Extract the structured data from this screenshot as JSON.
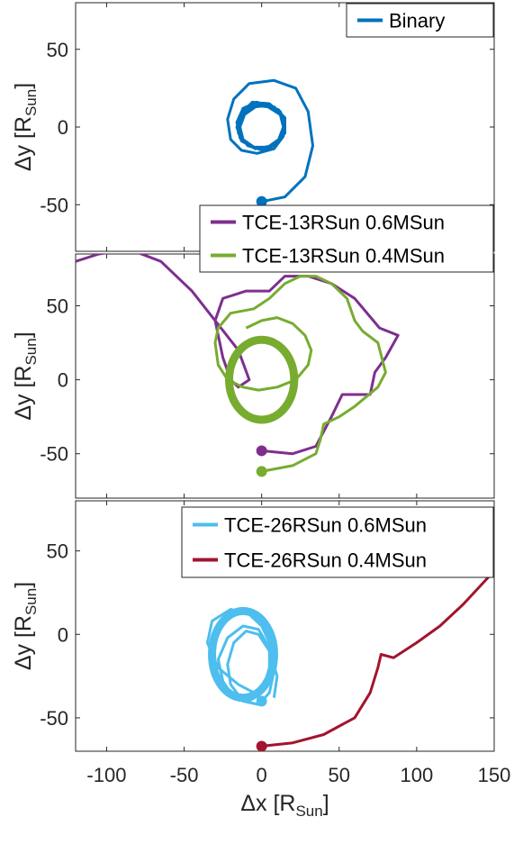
{
  "chart_data": [
    {
      "type": "line",
      "xlim": [
        -120,
        150
      ],
      "ylim": [
        -80,
        80
      ],
      "yticks": [
        50,
        0,
        -50
      ],
      "ylabel": {
        "prefix": "Δy [R",
        "sub": "Sun",
        "suffix": "]"
      },
      "grid": false,
      "legend_position": "top-right",
      "series": [
        {
          "name": "Binary",
          "color": "#0072BD",
          "thick": false,
          "points": [
            [
              0,
              -48
            ],
            [
              15,
              -45
            ],
            [
              28,
              -32
            ],
            [
              33,
              -12
            ],
            [
              30,
              10
            ],
            [
              22,
              25
            ],
            [
              8,
              30
            ],
            [
              -8,
              28
            ],
            [
              -18,
              18
            ],
            [
              -22,
              5
            ],
            [
              -20,
              -8
            ],
            [
              -13,
              -15
            ],
            [
              -3,
              -17
            ],
            [
              8,
              -14
            ],
            [
              14,
              -6
            ],
            [
              15,
              3
            ],
            [
              12,
              10
            ],
            [
              5,
              14
            ],
            [
              -4,
              13
            ],
            [
              -11,
              8
            ],
            [
              -14,
              0
            ],
            [
              -12,
              -8
            ],
            [
              -5,
              -13
            ],
            [
              4,
              -13
            ],
            [
              11,
              -8
            ],
            [
              14,
              0
            ],
            [
              12,
              8
            ],
            [
              4,
              13
            ],
            [
              -5,
              14
            ],
            [
              -12,
              9
            ],
            [
              -16,
              0
            ],
            [
              -13,
              -9
            ],
            [
              -4,
              -14
            ],
            [
              7,
              -12
            ],
            [
              15,
              -4
            ],
            [
              15,
              6
            ],
            [
              8,
              13
            ],
            [
              -3,
              16
            ],
            [
              -12,
              12
            ],
            [
              -16,
              3
            ],
            [
              -14,
              -7
            ],
            [
              -6,
              -13
            ],
            [
              4,
              -14
            ],
            [
              12,
              -8
            ],
            [
              15,
              2
            ],
            [
              11,
              11
            ],
            [
              2,
              15
            ],
            [
              -9,
              13
            ],
            [
              -15,
              5
            ],
            [
              -15,
              -4
            ],
            [
              -9,
              -12
            ],
            [
              1,
              -15
            ],
            [
              10,
              -11
            ],
            [
              15,
              -2
            ],
            [
              13,
              8
            ],
            [
              5,
              15
            ],
            [
              -6,
              16
            ],
            [
              -13,
              9
            ],
            [
              -16,
              -1
            ]
          ],
          "marker": [
            0,
            -48
          ],
          "center": [
            0,
            0
          ]
        }
      ]
    },
    {
      "type": "line",
      "xlim": [
        -120,
        150
      ],
      "ylim": [
        -80,
        85
      ],
      "yticks": [
        50,
        0,
        -50
      ],
      "ylabel": {
        "prefix": "Δy [R",
        "sub": "Sun",
        "suffix": "]"
      },
      "grid": false,
      "legend_position": "top-right",
      "series": [
        {
          "name": "TCE-13RSun 0.6MSun",
          "color": "#7E2F8E",
          "thick": false,
          "points": [
            [
              0,
              -48
            ],
            [
              20,
              -50
            ],
            [
              35,
              -45
            ],
            [
              45,
              -25
            ],
            [
              52,
              -10
            ],
            [
              70,
              -10
            ],
            [
              73,
              5
            ],
            [
              80,
              15
            ],
            [
              88,
              30
            ],
            [
              76,
              35
            ],
            [
              72,
              40
            ],
            [
              60,
              55
            ],
            [
              45,
              65
            ],
            [
              30,
              70
            ],
            [
              15,
              70
            ],
            [
              5,
              60
            ],
            [
              -10,
              60
            ],
            [
              -25,
              55
            ],
            [
              -30,
              40
            ],
            [
              -25,
              15
            ],
            [
              -20,
              0
            ],
            [
              -15,
              -5
            ],
            [
              -8,
              0
            ],
            [
              -15,
              20
            ],
            [
              -30,
              40
            ],
            [
              -45,
              60
            ],
            [
              -65,
              80
            ],
            [
              -85,
              88
            ],
            [
              -105,
              85
            ],
            [
              -120,
              80
            ]
          ],
          "marker": [
            0,
            -48
          ]
        },
        {
          "name": "TCE-13RSun 0.4MSun",
          "color": "#77AC30",
          "thick": false,
          "points": [
            [
              0,
              -62
            ],
            [
              20,
              -58
            ],
            [
              35,
              -50
            ],
            [
              38,
              -40
            ],
            [
              40,
              -30
            ],
            [
              50,
              -25
            ],
            [
              60,
              -18
            ],
            [
              75,
              -5
            ],
            [
              80,
              5
            ],
            [
              75,
              25
            ],
            [
              65,
              33
            ],
            [
              60,
              40
            ],
            [
              55,
              55
            ],
            [
              45,
              65
            ],
            [
              35,
              70
            ],
            [
              25,
              70
            ],
            [
              15,
              65
            ],
            [
              5,
              55
            ],
            [
              -5,
              48
            ],
            [
              -20,
              45
            ],
            [
              -28,
              35
            ],
            [
              -30,
              25
            ],
            [
              -28,
              10
            ],
            [
              -22,
              0
            ],
            [
              -12,
              -5
            ],
            [
              -2,
              -7
            ],
            [
              10,
              -5
            ],
            [
              22,
              0
            ],
            [
              30,
              10
            ],
            [
              32,
              20
            ],
            [
              28,
              30
            ],
            [
              20,
              38
            ],
            [
              10,
              42
            ],
            [
              0,
              40
            ],
            [
              -10,
              35
            ]
          ],
          "ring": {
            "cx": 0,
            "cy": 0,
            "rx": 21,
            "ry": 27
          },
          "marker": [
            0,
            -62
          ]
        }
      ]
    },
    {
      "type": "line",
      "xlim": [
        -120,
        150
      ],
      "ylim": [
        -70,
        80
      ],
      "yticks": [
        50,
        0,
        -50
      ],
      "xticks": [
        -100,
        -50,
        0,
        50,
        100,
        150
      ],
      "xlabel": {
        "prefix": "Δx [R",
        "sub": "Sun",
        "suffix": "]"
      },
      "ylabel": {
        "prefix": "Δy [R",
        "sub": "Sun",
        "suffix": "]"
      },
      "grid": false,
      "legend_position": "top-right",
      "series": [
        {
          "name": "TCE-26RSun 0.6MSun",
          "color": "#4DBEEE",
          "thick": false,
          "points": [
            [
              0,
              -40
            ],
            [
              -5,
              -35
            ],
            [
              -15,
              -30
            ],
            [
              -28,
              -20
            ],
            [
              -35,
              -5
            ],
            [
              -32,
              8
            ],
            [
              -20,
              15
            ],
            [
              -8,
              12
            ],
            [
              0,
              5
            ],
            [
              5,
              -5
            ],
            [
              5,
              -20
            ],
            [
              0,
              -35
            ],
            [
              -8,
              -40
            ],
            [
              -18,
              -38
            ],
            [
              -25,
              -28
            ],
            [
              -28,
              -15
            ],
            [
              -22,
              -2
            ],
            [
              -12,
              5
            ],
            [
              -2,
              3
            ],
            [
              5,
              -8
            ],
            [
              8,
              -22
            ],
            [
              5,
              -35
            ],
            [
              -2,
              -42
            ],
            [
              -12,
              -40
            ],
            [
              -20,
              -30
            ],
            [
              -22,
              -18
            ],
            [
              -18,
              -5
            ],
            [
              -10,
              2
            ],
            [
              -2,
              0
            ],
            [
              5,
              -10
            ],
            [
              10,
              -25
            ],
            [
              8,
              -38
            ]
          ],
          "ring": {
            "cx": -12,
            "cy": -12,
            "rx": 20,
            "ry": 26
          },
          "marker": [
            0,
            -40
          ]
        },
        {
          "name": "TCE-26RSun 0.4MSun",
          "color": "#A2142F",
          "thick": false,
          "points": [
            [
              0,
              -67
            ],
            [
              20,
              -65
            ],
            [
              40,
              -60
            ],
            [
              60,
              -50
            ],
            [
              70,
              -35
            ],
            [
              75,
              -20
            ],
            [
              77,
              -12
            ],
            [
              85,
              -14
            ],
            [
              100,
              -5
            ],
            [
              115,
              5
            ],
            [
              130,
              18
            ],
            [
              140,
              28
            ],
            [
              150,
              38
            ]
          ],
          "marker": [
            0,
            -67
          ]
        }
      ]
    }
  ]
}
